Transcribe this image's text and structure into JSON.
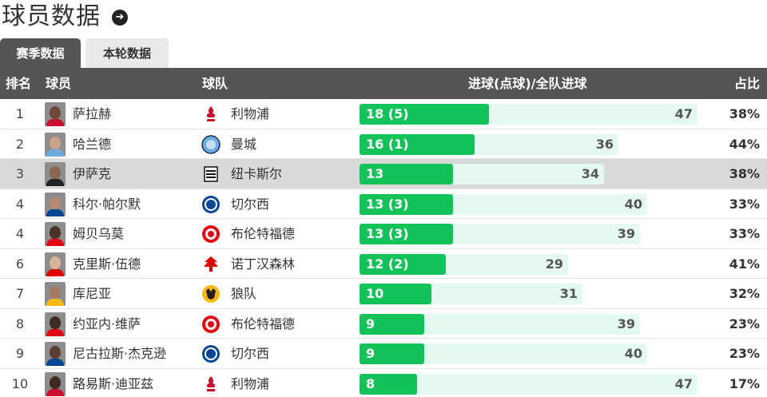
{
  "page": {
    "title": "球员数据"
  },
  "tabs": [
    {
      "label": "赛季数据",
      "active": true
    },
    {
      "label": "本轮数据",
      "active": false
    }
  ],
  "table": {
    "headers": {
      "rank": "排名",
      "player": "球员",
      "team": "球队",
      "goals": "进球(点球)/全队进球",
      "pct": "占比"
    },
    "max_team_goals": 47,
    "rows": [
      {
        "rank": "1",
        "player": "萨拉赫",
        "team": "利物浦",
        "goals": 18,
        "goals_label": "18 (5)",
        "team_goals": 47,
        "pct": "38%",
        "crest": "liverpool"
      },
      {
        "rank": "2",
        "player": "哈兰德",
        "team": "曼城",
        "goals": 16,
        "goals_label": "16 (1)",
        "team_goals": 36,
        "pct": "44%",
        "crest": "mancity"
      },
      {
        "rank": "3",
        "player": "伊萨克",
        "team": "纽卡斯尔",
        "goals": 13,
        "goals_label": "13",
        "team_goals": 34,
        "pct": "38%",
        "crest": "newcastle",
        "highlight": true
      },
      {
        "rank": "4",
        "player": "科尔·帕尔默",
        "team": "切尔西",
        "goals": 13,
        "goals_label": "13 (3)",
        "team_goals": 40,
        "pct": "33%",
        "crest": "chelsea"
      },
      {
        "rank": "4",
        "player": "姆贝乌莫",
        "team": "布伦特福德",
        "goals": 13,
        "goals_label": "13 (3)",
        "team_goals": 39,
        "pct": "33%",
        "crest": "brentford"
      },
      {
        "rank": "6",
        "player": "克里斯·伍德",
        "team": "诺丁汉森林",
        "goals": 12,
        "goals_label": "12 (2)",
        "team_goals": 29,
        "pct": "41%",
        "crest": "forest"
      },
      {
        "rank": "7",
        "player": "库尼亚",
        "team": "狼队",
        "goals": 10,
        "goals_label": "10",
        "team_goals": 31,
        "pct": "32%",
        "crest": "wolves"
      },
      {
        "rank": "8",
        "player": "约亚内·维萨",
        "team": "布伦特福德",
        "goals": 9,
        "goals_label": "9",
        "team_goals": 39,
        "pct": "23%",
        "crest": "brentford"
      },
      {
        "rank": "9",
        "player": "尼古拉斯·杰克逊",
        "team": "切尔西",
        "goals": 9,
        "goals_label": "9",
        "team_goals": 40,
        "pct": "23%",
        "crest": "chelsea"
      },
      {
        "rank": "10",
        "player": "路易斯·迪亚兹",
        "team": "利物浦",
        "goals": 8,
        "goals_label": "8",
        "team_goals": 47,
        "pct": "17%",
        "crest": "liverpool"
      }
    ]
  },
  "colors": {
    "header_bg": "#555555",
    "goal_bar": "#14c25a",
    "team_bar": "#e4faf0",
    "highlight_row": "#d9d9d9"
  },
  "icons": {
    "title_action": "arrow-right-circle-icon"
  }
}
